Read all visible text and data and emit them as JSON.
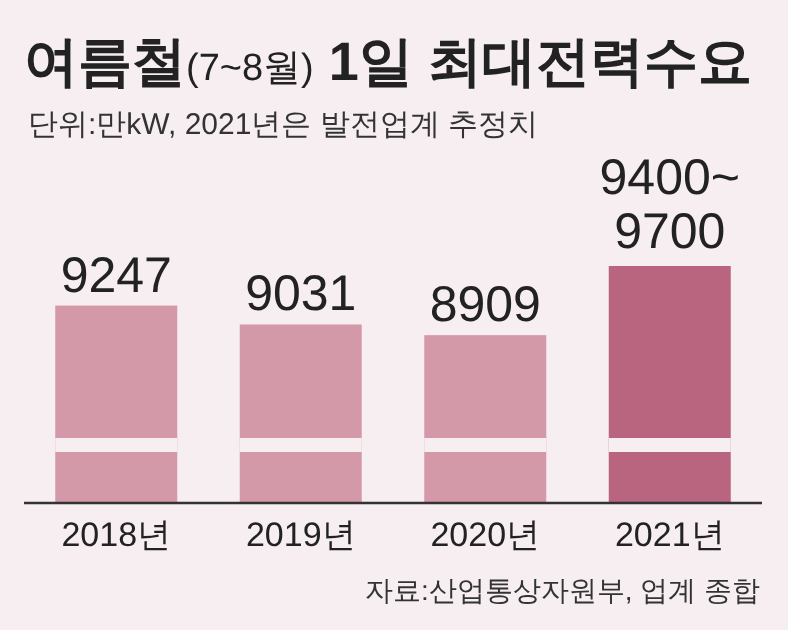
{
  "chart_data": {
    "type": "bar",
    "title": "여름철(7~8월) 1일 최대전력수요",
    "subtitle": "단위:만kW, 2021년은 발전업계 추정치",
    "categories": [
      "2018년",
      "2019년",
      "2020년",
      "2021년"
    ],
    "values": [
      9247,
      9031,
      8909,
      9700
    ],
    "value_labels": [
      "9247",
      "9031",
      "8909",
      "9400~9700"
    ],
    "colors": [
      "#d499a9",
      "#d499a9",
      "#d499a9",
      "#b9657f"
    ],
    "ylim": [
      7000,
      9700
    ],
    "annotations": [
      "자료:산업통상자원부, 업계 종합"
    ]
  }
}
